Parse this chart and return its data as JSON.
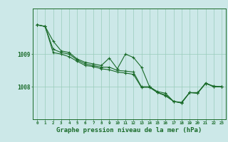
{
  "background_color": "#cce8e8",
  "grid_color": "#99ccbb",
  "line_color": "#1a6b2a",
  "xlabel": "Graphe pression niveau de la mer (hPa)",
  "xlabel_fontsize": 6.5,
  "x_ticks": [
    0,
    1,
    2,
    3,
    4,
    5,
    6,
    7,
    8,
    9,
    10,
    11,
    12,
    13,
    14,
    15,
    16,
    17,
    18,
    19,
    20,
    21,
    22,
    23
  ],
  "yticks": [
    1008,
    1009
  ],
  "ylim": [
    1007.0,
    1010.4
  ],
  "xlim": [
    -0.5,
    23.5
  ],
  "series": [
    [
      1009.9,
      1009.85,
      1009.4,
      1009.1,
      1009.05,
      1008.85,
      1008.75,
      1008.7,
      1008.65,
      1008.88,
      1008.55,
      1009.0,
      1008.9,
      1008.6,
      1008.0,
      1007.85,
      1007.8,
      1007.55,
      1007.5,
      1007.82,
      1007.82,
      1008.1,
      1008.02,
      1008.0
    ],
    [
      1009.9,
      1009.85,
      1009.15,
      1009.05,
      1009.0,
      1008.82,
      1008.7,
      1008.65,
      1008.6,
      1008.6,
      1008.5,
      1008.48,
      1008.45,
      1008.0,
      1008.0,
      1007.82,
      1007.75,
      1007.55,
      1007.5,
      1007.82,
      1007.8,
      1008.12,
      1008.0,
      1008.0
    ],
    [
      1009.9,
      1009.85,
      1009.05,
      1009.0,
      1008.92,
      1008.78,
      1008.65,
      1008.62,
      1008.55,
      1008.52,
      1008.45,
      1008.42,
      1008.38,
      1007.98,
      1007.98,
      1007.82,
      1007.72,
      1007.55,
      1007.52,
      1007.82,
      1007.8,
      1008.1,
      1008.0,
      1008.0
    ]
  ]
}
